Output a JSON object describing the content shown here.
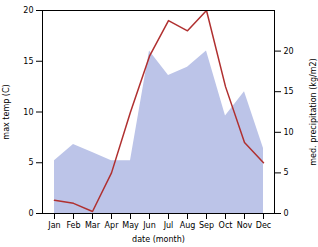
{
  "chart_data": {
    "type": "line",
    "xlabel": "date (month)",
    "ylabel": "max temp (C)",
    "y2label": "med. precipitation (kg/m2)",
    "categories": [
      "Jan",
      "Feb",
      "Mar",
      "Apr",
      "May",
      "Jun",
      "Jul",
      "Aug",
      "Sep",
      "Oct",
      "Nov",
      "Dec"
    ],
    "ylim": [
      0,
      20
    ],
    "yticks": [
      0,
      5,
      10,
      15,
      20
    ],
    "y2lim": [
      0,
      25
    ],
    "y2ticks": [
      0,
      5,
      10,
      15,
      20
    ],
    "grid": false,
    "series": [
      {
        "type": "area",
        "axis": "y2",
        "color": "#bcc4e8",
        "values": [
          6.5,
          8.5,
          7.5,
          6.5,
          6.5,
          20.0,
          17.0,
          18.0,
          20.0,
          12.0,
          15.0,
          8.0
        ]
      },
      {
        "type": "line",
        "axis": "y",
        "color": "#b03030",
        "values": [
          1.3,
          1.0,
          0.2,
          4.0,
          10.0,
          15.5,
          19.0,
          18.0,
          20.0,
          12.5,
          7.0,
          5.0
        ]
      }
    ]
  }
}
